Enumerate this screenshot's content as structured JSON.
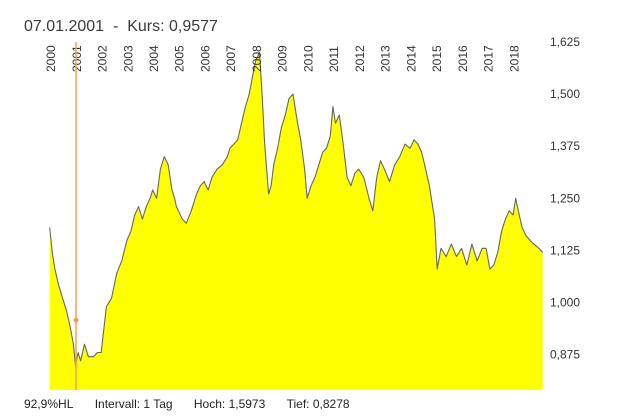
{
  "header": {
    "date": "07.01.2001",
    "separator": "-",
    "price_label": "Kurs:",
    "price_value": "0,9577"
  },
  "footer": {
    "hl": "92,9%HL",
    "interval": "Intervall: 1 Tag",
    "high": "Hoch: 1,5973",
    "low": "Tief: 0,8278"
  },
  "colors": {
    "area_fill": "#ffff00",
    "line": "#666666",
    "cursor": "#f5a050",
    "axis_text": "#333333"
  },
  "chart_data": {
    "type": "area",
    "title": "",
    "xlabel": "",
    "ylabel": "",
    "x": [
      2000.0,
      2000.1,
      2000.2,
      2000.35,
      2000.5,
      2000.65,
      2000.8,
      2000.92,
      2001.0,
      2001.1,
      2001.2,
      2001.35,
      2001.5,
      2001.7,
      2001.85,
      2002.0,
      2002.2,
      2002.4,
      2002.6,
      2002.8,
      2003.0,
      2003.15,
      2003.3,
      2003.45,
      2003.6,
      2003.75,
      2003.9,
      2004.0,
      2004.15,
      2004.3,
      2004.45,
      2004.6,
      2004.75,
      2004.85,
      2004.92,
      2005.0,
      2005.15,
      2005.3,
      2005.5,
      2005.7,
      2005.85,
      2006.0,
      2006.15,
      2006.3,
      2006.5,
      2006.7,
      2006.9,
      2007.0,
      2007.15,
      2007.3,
      2007.45,
      2007.6,
      2007.75,
      2007.9,
      2008.0,
      2008.15,
      2008.25,
      2008.35,
      2008.5,
      2008.6,
      2008.7,
      2008.85,
      2009.0,
      2009.15,
      2009.3,
      2009.45,
      2009.6,
      2009.75,
      2009.9,
      2010.0,
      2010.15,
      2010.3,
      2010.45,
      2010.6,
      2010.75,
      2010.9,
      2011.0,
      2011.1,
      2011.25,
      2011.4,
      2011.55,
      2011.7,
      2011.85,
      2012.0,
      2012.2,
      2012.4,
      2012.55,
      2012.7,
      2012.85,
      2013.0,
      2013.2,
      2013.4,
      2013.6,
      2013.8,
      2014.0,
      2014.15,
      2014.3,
      2014.45,
      2014.6,
      2014.75,
      2014.85,
      2014.95,
      2015.05,
      2015.2,
      2015.4,
      2015.6,
      2015.8,
      2016.0,
      2016.2,
      2016.4,
      2016.6,
      2016.8,
      2016.95,
      2017.1,
      2017.25,
      2017.4,
      2017.55,
      2017.7,
      2017.85,
      2018.0,
      2018.1,
      2018.2,
      2018.35,
      2018.5,
      2018.65,
      2018.8,
      2019.0,
      2019.15
    ],
    "series": [
      {
        "values": [
          1.18,
          1.12,
          1.08,
          1.04,
          1.01,
          0.98,
          0.94,
          0.9,
          0.85,
          0.88,
          0.86,
          0.9,
          0.87,
          0.87,
          0.88,
          0.88,
          0.99,
          1.01,
          1.07,
          1.1,
          1.15,
          1.17,
          1.21,
          1.23,
          1.2,
          1.23,
          1.25,
          1.27,
          1.25,
          1.32,
          1.35,
          1.33,
          1.27,
          1.25,
          1.23,
          1.22,
          1.2,
          1.19,
          1.22,
          1.26,
          1.28,
          1.29,
          1.27,
          1.3,
          1.32,
          1.33,
          1.35,
          1.37,
          1.38,
          1.39,
          1.43,
          1.47,
          1.5,
          1.55,
          1.58,
          1.6,
          1.5,
          1.38,
          1.26,
          1.28,
          1.33,
          1.37,
          1.42,
          1.45,
          1.49,
          1.5,
          1.44,
          1.39,
          1.32,
          1.25,
          1.28,
          1.3,
          1.33,
          1.36,
          1.37,
          1.4,
          1.47,
          1.43,
          1.45,
          1.38,
          1.3,
          1.28,
          1.31,
          1.32,
          1.3,
          1.25,
          1.22,
          1.3,
          1.34,
          1.32,
          1.29,
          1.33,
          1.35,
          1.38,
          1.37,
          1.39,
          1.38,
          1.36,
          1.32,
          1.28,
          1.24,
          1.2,
          1.08,
          1.13,
          1.11,
          1.14,
          1.11,
          1.13,
          1.09,
          1.14,
          1.1,
          1.13,
          1.13,
          1.08,
          1.09,
          1.12,
          1.17,
          1.2,
          1.22,
          1.21,
          1.25,
          1.22,
          1.18,
          1.16,
          1.15,
          1.14,
          1.13,
          1.12
        ]
      }
    ],
    "x_ticks": [
      2000,
      2001,
      2002,
      2003,
      2004,
      2005,
      2006,
      2007,
      2008,
      2009,
      2010,
      2011,
      2012,
      2013,
      2014,
      2015,
      2016,
      2017,
      2018
    ],
    "x_tick_labels": [
      "2000",
      "2001",
      "2002",
      "2003",
      "2004",
      "2005",
      "2006",
      "2007",
      "2008",
      "2009",
      "2010",
      "2011",
      "2012",
      "2013",
      "2014",
      "2015",
      "2016",
      "2017",
      "2018"
    ],
    "xlim": [
      1999.0,
      2019.2
    ],
    "y_ticks": [
      0.875,
      1.0,
      1.125,
      1.25,
      1.375,
      1.5,
      1.625
    ],
    "y_tick_labels": [
      "0,875",
      "1,000",
      "1,125",
      "1,250",
      "1,375",
      "1,500",
      "1,625"
    ],
    "ylim": [
      0.79,
      1.625
    ],
    "cursor_x": 2001.02,
    "cursor_y": 0.9577,
    "grid": false,
    "legend": "none"
  }
}
